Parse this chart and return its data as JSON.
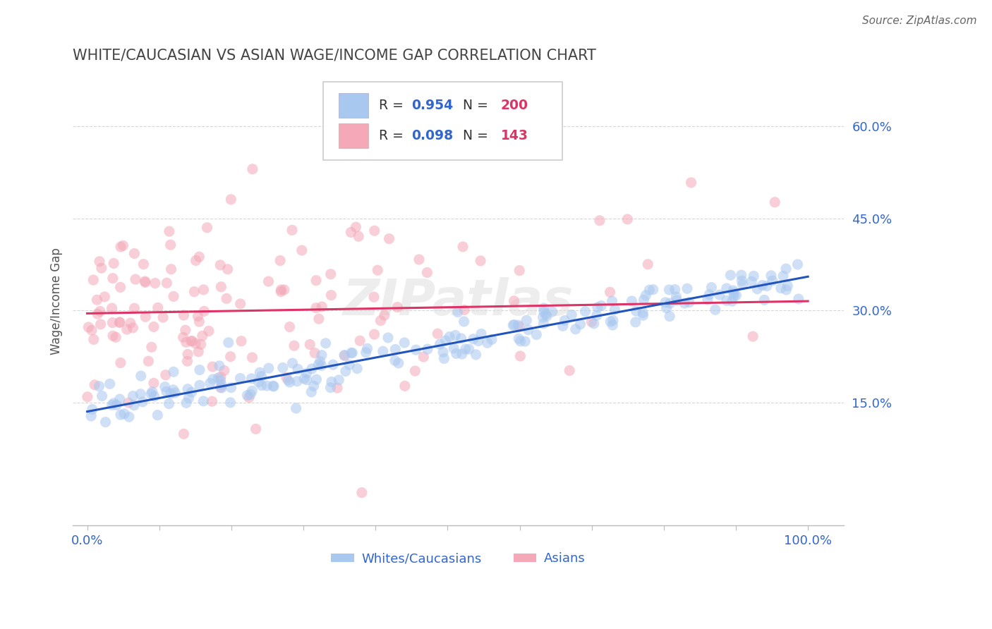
{
  "title": "WHITE/CAUCASIAN VS ASIAN WAGE/INCOME GAP CORRELATION CHART",
  "source": "Source: ZipAtlas.com",
  "ylabel": "Wage/Income Gap",
  "x_ticks": [
    0.0,
    0.1,
    0.2,
    0.3,
    0.4,
    0.5,
    0.6,
    0.7,
    0.8,
    0.9,
    1.0
  ],
  "x_tick_labels": [
    "0.0%",
    "",
    "",
    "",
    "",
    "",
    "",
    "",
    "",
    "",
    "100.0%"
  ],
  "y_ticks": [
    0.0,
    0.15,
    0.3,
    0.45,
    0.6
  ],
  "y_tick_labels": [
    "",
    "15.0%",
    "30.0%",
    "45.0%",
    "60.0%"
  ],
  "xlim": [
    -0.02,
    1.05
  ],
  "ylim": [
    -0.05,
    0.68
  ],
  "blue_color": "#A8C8F0",
  "pink_color": "#F4A8B8",
  "blue_line_color": "#2255BB",
  "pink_line_color": "#DD3366",
  "grid_color": "#CCCCCC",
  "title_color": "#444444",
  "axis_label_color": "#3366CC",
  "source_color": "#666666",
  "legend_R_blue": "0.954",
  "legend_N_blue": "200",
  "legend_R_pink": "0.098",
  "legend_N_pink": "143",
  "blue_n": 200,
  "pink_n": 143,
  "blue_line_x0": 0.0,
  "blue_line_y0": 0.135,
  "blue_line_x1": 1.0,
  "blue_line_y1": 0.355,
  "pink_line_x0": 0.0,
  "pink_line_y0": 0.295,
  "pink_line_x1": 1.0,
  "pink_line_y1": 0.315,
  "watermark": "ZIPatlas",
  "legend_text_color": "#333333",
  "legend_value_color": "#3366CC",
  "legend_N_value_color": "#DD3366"
}
